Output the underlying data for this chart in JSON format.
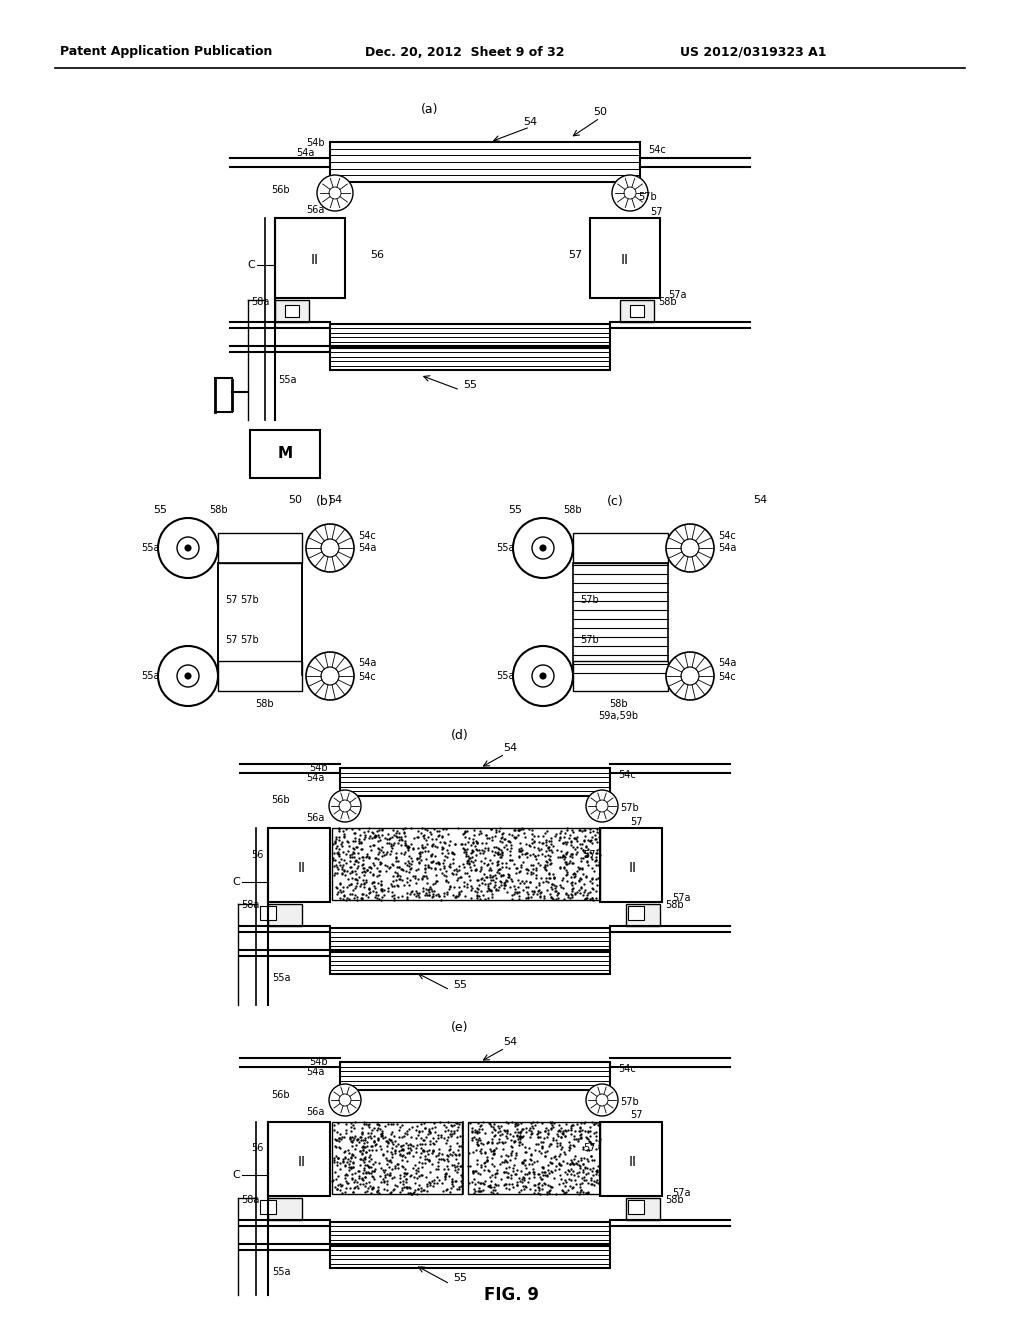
{
  "header_left": "Patent Application Publication",
  "header_mid": "Dec. 20, 2012  Sheet 9 of 32",
  "header_right": "US 2012/0319323 A1",
  "fig_label": "FIG. 9",
  "background_color": "#ffffff",
  "line_color": "#000000"
}
